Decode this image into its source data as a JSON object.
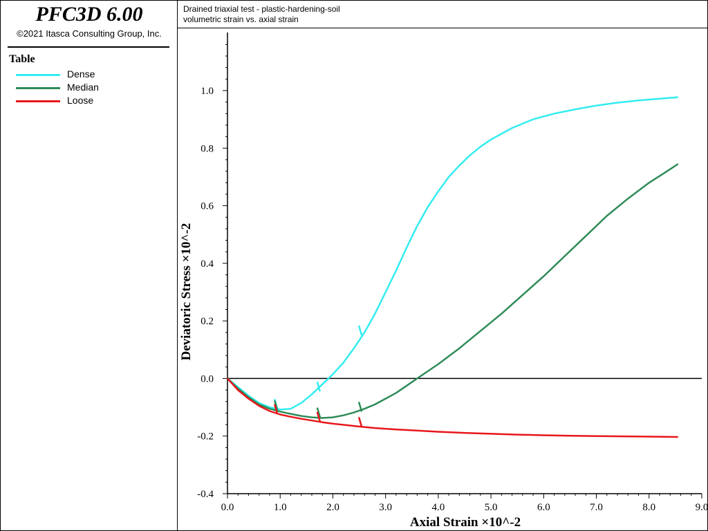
{
  "app": {
    "title": "PFC3D 6.00",
    "copyright": "©2021 Itasca Consulting Group, Inc."
  },
  "legend": {
    "title": "Table",
    "items": [
      {
        "label": "Dense",
        "color": "#33ecf0"
      },
      {
        "label": "Median",
        "color": "#2e8b57"
      },
      {
        "label": "Loose",
        "color": "#e8161a"
      }
    ]
  },
  "header": {
    "line1": "Drained triaxial test - plastic-hardening-soil",
    "line2": "volumetric strain vs. axial strain"
  },
  "chart_data": {
    "type": "line",
    "xlabel": "Axial Strain ×10^-2",
    "ylabel": "Deviatoric Stress ×10^-2",
    "xlim": [
      0,
      9
    ],
    "ylim": [
      -0.4,
      1.0
    ],
    "x_ticks": [
      "0.0",
      "1.0",
      "2.0",
      "3.0",
      "4.0",
      "5.0",
      "6.0",
      "7.0",
      "8.0",
      "9.0"
    ],
    "y_ticks": [
      "-0.4",
      "-0.2",
      "0.0",
      "0.2",
      "0.4",
      "0.6",
      "0.8",
      "1.0"
    ],
    "series": [
      {
        "name": "Dense",
        "color": "#33ecf0",
        "points": [
          [
            0,
            0
          ],
          [
            0.2,
            -0.03
          ],
          [
            0.4,
            -0.06
          ],
          [
            0.6,
            -0.085
          ],
          [
            0.8,
            -0.1
          ],
          [
            1.0,
            -0.108
          ],
          [
            1.2,
            -0.105
          ],
          [
            1.4,
            -0.085
          ],
          [
            1.6,
            -0.055
          ],
          [
            1.8,
            -0.02
          ],
          [
            2.0,
            0.015
          ],
          [
            2.2,
            0.055
          ],
          [
            2.4,
            0.105
          ],
          [
            2.6,
            0.16
          ],
          [
            2.8,
            0.225
          ],
          [
            3.0,
            0.3
          ],
          [
            3.2,
            0.375
          ],
          [
            3.4,
            0.455
          ],
          [
            3.6,
            0.53
          ],
          [
            3.8,
            0.595
          ],
          [
            4.0,
            0.65
          ],
          [
            4.2,
            0.7
          ],
          [
            4.4,
            0.74
          ],
          [
            4.6,
            0.775
          ],
          [
            4.8,
            0.805
          ],
          [
            5.0,
            0.83
          ],
          [
            5.4,
            0.87
          ],
          [
            5.8,
            0.9
          ],
          [
            6.2,
            0.92
          ],
          [
            6.6,
            0.935
          ],
          [
            7.0,
            0.948
          ],
          [
            7.4,
            0.958
          ],
          [
            7.8,
            0.966
          ],
          [
            8.2,
            0.972
          ],
          [
            8.55,
            0.977
          ]
        ]
      },
      {
        "name": "Median",
        "color": "#2e8b57",
        "points": [
          [
            0,
            0
          ],
          [
            0.2,
            -0.035
          ],
          [
            0.4,
            -0.065
          ],
          [
            0.6,
            -0.09
          ],
          [
            0.8,
            -0.105
          ],
          [
            1.0,
            -0.115
          ],
          [
            1.2,
            -0.123
          ],
          [
            1.4,
            -0.13
          ],
          [
            1.6,
            -0.135
          ],
          [
            1.8,
            -0.137
          ],
          [
            2.0,
            -0.135
          ],
          [
            2.2,
            -0.128
          ],
          [
            2.4,
            -0.118
          ],
          [
            2.6,
            -0.105
          ],
          [
            2.8,
            -0.09
          ],
          [
            3.0,
            -0.07
          ],
          [
            3.2,
            -0.05
          ],
          [
            3.4,
            -0.025
          ],
          [
            3.6,
            0.0
          ],
          [
            3.8,
            0.025
          ],
          [
            4.0,
            0.05
          ],
          [
            4.4,
            0.105
          ],
          [
            4.8,
            0.165
          ],
          [
            5.2,
            0.225
          ],
          [
            5.6,
            0.29
          ],
          [
            6.0,
            0.355
          ],
          [
            6.4,
            0.425
          ],
          [
            6.8,
            0.495
          ],
          [
            7.2,
            0.565
          ],
          [
            7.6,
            0.625
          ],
          [
            8.0,
            0.68
          ],
          [
            8.3,
            0.715
          ],
          [
            8.55,
            0.745
          ]
        ]
      },
      {
        "name": "Loose",
        "color": "#e8161a",
        "points": [
          [
            0,
            0
          ],
          [
            0.2,
            -0.04
          ],
          [
            0.4,
            -0.07
          ],
          [
            0.6,
            -0.095
          ],
          [
            0.8,
            -0.113
          ],
          [
            1.0,
            -0.125
          ],
          [
            1.2,
            -0.133
          ],
          [
            1.4,
            -0.14
          ],
          [
            1.6,
            -0.146
          ],
          [
            1.8,
            -0.152
          ],
          [
            2.0,
            -0.157
          ],
          [
            2.4,
            -0.165
          ],
          [
            2.8,
            -0.172
          ],
          [
            3.2,
            -0.177
          ],
          [
            3.6,
            -0.181
          ],
          [
            4.0,
            -0.185
          ],
          [
            4.5,
            -0.189
          ],
          [
            5.0,
            -0.192
          ],
          [
            5.5,
            -0.195
          ],
          [
            6.0,
            -0.197
          ],
          [
            6.5,
            -0.199
          ],
          [
            7.0,
            -0.2
          ],
          [
            7.5,
            -0.201
          ],
          [
            8.0,
            -0.202
          ],
          [
            8.55,
            -0.203
          ]
        ]
      }
    ],
    "markers": [
      {
        "series": "Dense",
        "points": [
          [
            0.92,
            -0.105
          ],
          [
            1.73,
            -0.045
          ],
          [
            2.52,
            0.15
          ]
        ]
      },
      {
        "series": "Median",
        "points": [
          [
            0.92,
            -0.11
          ],
          [
            1.73,
            -0.135
          ],
          [
            2.52,
            -0.115
          ]
        ]
      },
      {
        "series": "Loose",
        "points": [
          [
            0.92,
            -0.123
          ],
          [
            1.73,
            -0.15
          ],
          [
            2.52,
            -0.168
          ]
        ]
      }
    ]
  }
}
